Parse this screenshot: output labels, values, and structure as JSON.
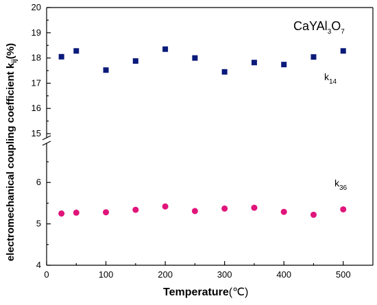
{
  "chart_data": {
    "type": "scatter",
    "title": "CaYAl3O7",
    "title_parts": {
      "p1": "CaYAl",
      "s1": "3",
      "p2": "O",
      "s2": "7"
    },
    "xlabel": "Temperature",
    "xlabel_unit": "(℃)",
    "ylabel": "electromechanical coupling coefficient k",
    "ylabel_sub": "ij",
    "ylabel_unit": "(%)",
    "xlim": [
      0,
      550
    ],
    "x_ticks": [
      0,
      100,
      200,
      300,
      400,
      500
    ],
    "y_axis_broken": true,
    "y_segments": [
      {
        "range": [
          15,
          20
        ],
        "ticks": [
          15,
          16,
          17,
          18,
          19,
          20
        ]
      },
      {
        "range": [
          4,
          6.6
        ],
        "ticks": [
          4,
          5,
          6
        ]
      }
    ],
    "series": [
      {
        "label_main": "k",
        "label_sub": "14",
        "marker": "square",
        "color": "#0a1a7a",
        "x": [
          25,
          50,
          100,
          150,
          200,
          250,
          300,
          350,
          400,
          450,
          500
        ],
        "y": [
          18.05,
          18.28,
          17.52,
          17.88,
          18.35,
          18.0,
          17.45,
          17.82,
          17.74,
          18.04,
          18.28
        ]
      },
      {
        "label_main": "k",
        "label_sub": "36",
        "marker": "circle",
        "color": "#e0147a",
        "x": [
          25,
          50,
          100,
          150,
          200,
          250,
          300,
          350,
          400,
          450,
          500
        ],
        "y": [
          5.25,
          5.27,
          5.28,
          5.34,
          5.42,
          5.31,
          5.37,
          5.39,
          5.29,
          5.22,
          5.35
        ]
      }
    ]
  }
}
